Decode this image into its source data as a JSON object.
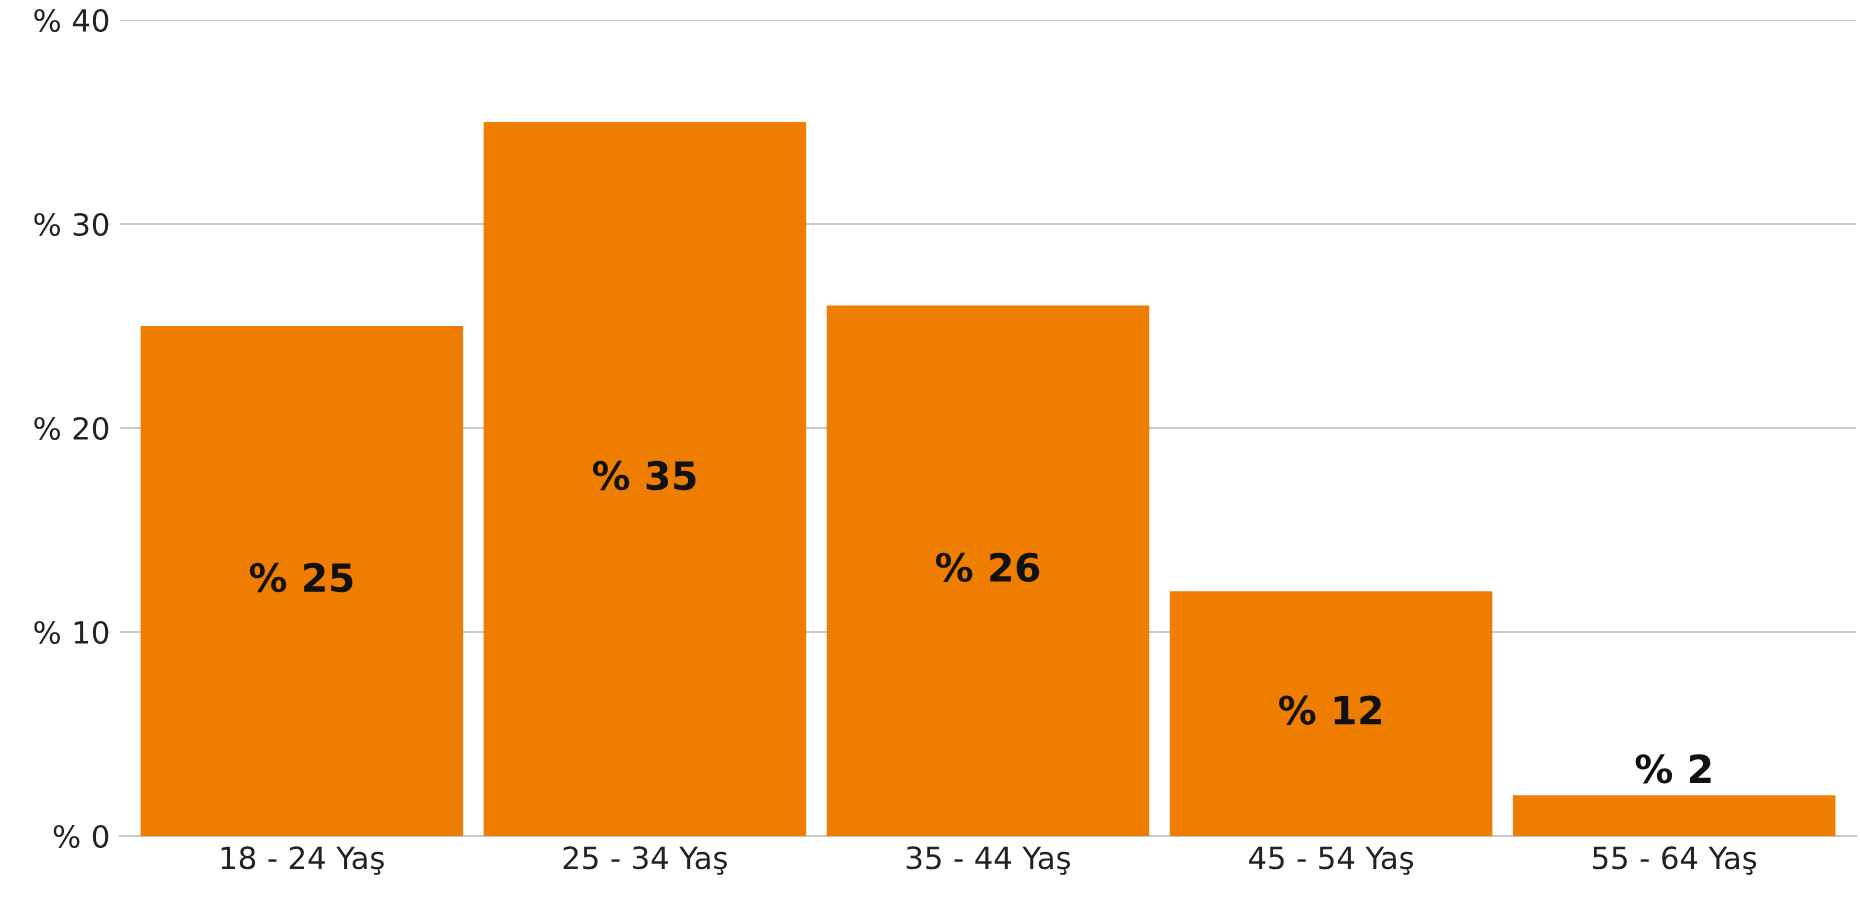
{
  "chart_data": {
    "type": "bar",
    "categories": [
      "18 - 24 Yaş",
      "25 - 34 Yaş",
      "35 - 44 Yaş",
      "45 - 54 Yaş",
      "55 - 64 Yaş"
    ],
    "values": [
      25,
      35,
      26,
      12,
      2
    ],
    "value_labels": [
      "% 25",
      "% 35",
      "% 26",
      "% 12",
      "% 2"
    ],
    "color": "#ef7d00",
    "ylim": [
      0,
      40
    ],
    "yticks": [
      {
        "value": 0,
        "label": "% 0"
      },
      {
        "value": 10,
        "label": "% 10"
      },
      {
        "value": 20,
        "label": "% 20"
      },
      {
        "value": 30,
        "label": "% 30"
      },
      {
        "value": 40,
        "label": "% 40"
      }
    ],
    "grid": "y",
    "legend": false
  }
}
